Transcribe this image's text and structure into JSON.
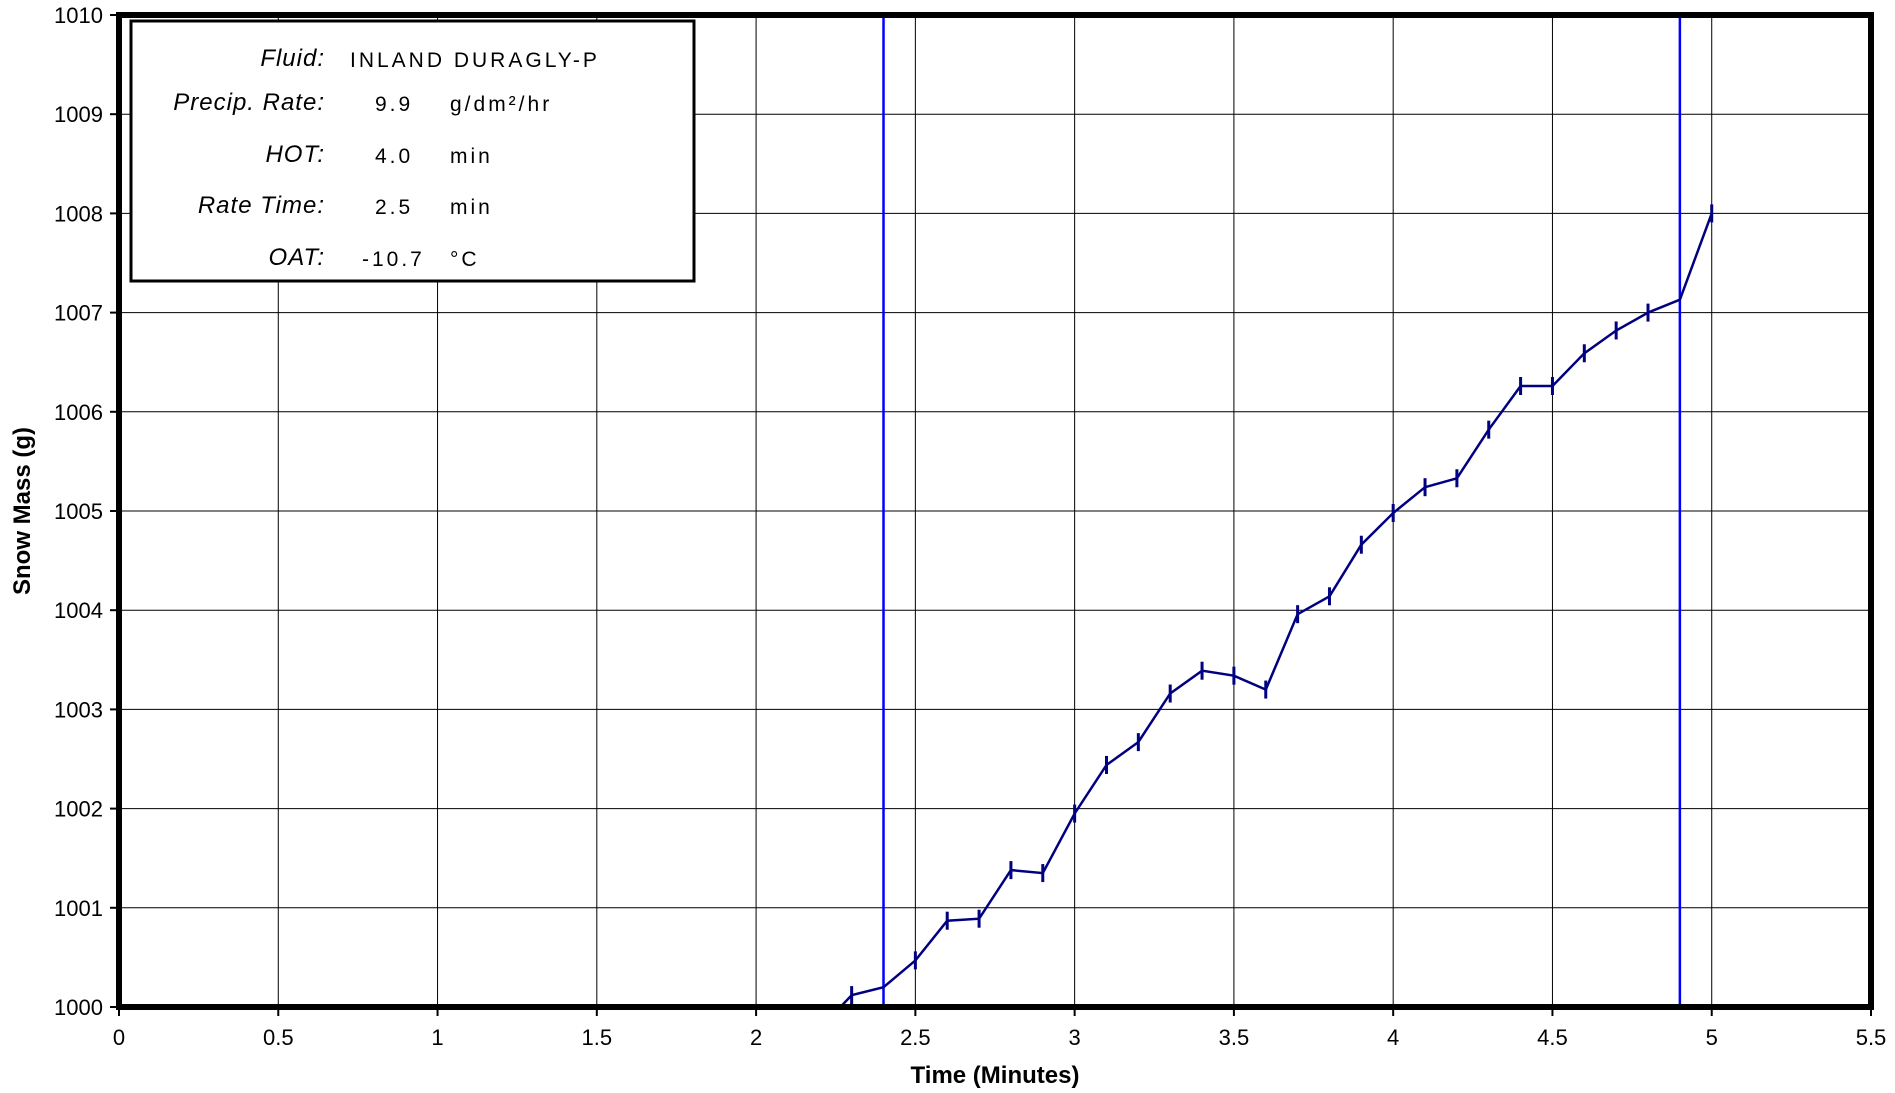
{
  "chart_data": {
    "type": "line",
    "title": "",
    "xlabel": "Time (Minutes)",
    "ylabel": "Snow Mass (g)",
    "xlim": [
      0,
      5.5
    ],
    "ylim": [
      1000,
      1010
    ],
    "x_ticks": [
      "0",
      "0.5",
      "1",
      "1.5",
      "2",
      "2.5",
      "3",
      "3.5",
      "4",
      "4.5",
      "5",
      "5.5"
    ],
    "y_ticks": [
      "1000",
      "1001",
      "1002",
      "1003",
      "1004",
      "1005",
      "1006",
      "1007",
      "1008",
      "1009",
      "1010"
    ],
    "grid": true,
    "legend": "none",
    "series": [
      {
        "color": "#000080",
        "x": [
          2.25,
          2.3,
          2.4,
          2.5,
          2.6,
          2.7,
          2.8,
          2.9,
          3.0,
          3.1,
          3.2,
          3.3,
          3.4,
          3.5,
          3.6,
          3.7,
          3.8,
          3.9,
          4.0,
          4.1,
          4.2,
          4.3,
          4.4,
          4.5,
          4.6,
          4.7,
          4.8,
          4.9,
          5.0
        ],
        "y": [
          999.95,
          1000.12,
          1000.2,
          1000.47,
          1000.87,
          1000.89,
          1001.38,
          1001.35,
          1001.95,
          1002.44,
          1002.67,
          1003.16,
          1003.39,
          1003.34,
          1003.2,
          1003.96,
          1004.14,
          1004.66,
          1004.98,
          1005.24,
          1005.33,
          1005.82,
          1006.26,
          1006.26,
          1006.59,
          1006.82,
          1007.0,
          1007.13,
          1008.0
        ]
      }
    ],
    "markers_x": [
      2.3,
      2.5,
      2.6,
      2.7,
      2.8,
      2.9,
      3.0,
      3.1,
      3.2,
      3.3,
      3.4,
      3.5,
      3.6,
      3.7,
      3.8,
      3.9,
      4.0,
      4.1,
      4.2,
      4.3,
      4.4,
      4.5,
      4.6,
      4.7,
      4.8,
      5.0
    ],
    "vertical_lines": [
      {
        "x": 2.4,
        "color": "#0000ff"
      },
      {
        "x": 4.9,
        "color": "#0000ff"
      }
    ]
  },
  "info_box": {
    "rows": [
      {
        "label": "Fluid:",
        "value": "INLAND DURAGLY-P",
        "unit": ""
      },
      {
        "label": "Precip. Rate:",
        "value": "9.9",
        "unit": "g/dm²/hr"
      },
      {
        "label": "HOT:",
        "value": "4.0",
        "unit": "min"
      },
      {
        "label": "Rate Time:",
        "value": "2.5",
        "unit": "min"
      },
      {
        "label": "OAT:",
        "value": "-10.7",
        "unit": "°C"
      }
    ]
  }
}
